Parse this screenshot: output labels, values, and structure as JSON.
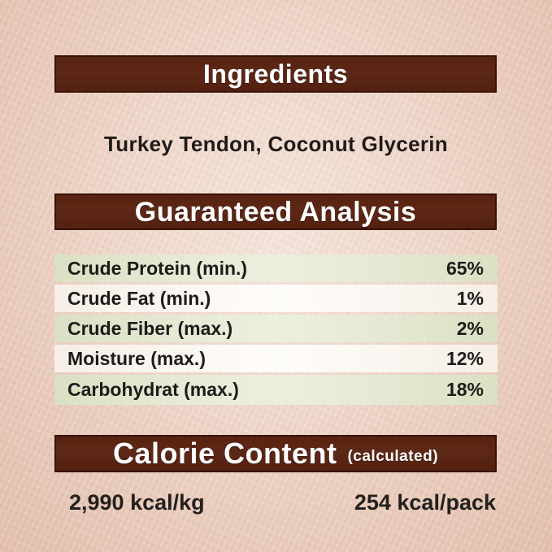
{
  "label": {
    "background_color": "#eed3c5",
    "banner_color": "#5a2414",
    "banner_text_color": "#ffffff",
    "row_green_color": "#e2e6cd",
    "row_white_color": "#fbf7f2"
  },
  "ingredients": {
    "title": "Ingredients",
    "value": "Turkey Tendon, Coconut Glycerin"
  },
  "guaranteed_analysis": {
    "title": "Guaranteed Analysis",
    "rows": [
      {
        "label": "Crude Protein (min.)",
        "value": "65%"
      },
      {
        "label": "Crude Fat (min.)",
        "value": "1%"
      },
      {
        "label": "Crude Fiber (max.)",
        "value": "2%"
      },
      {
        "label": "Moisture (max.)",
        "value": "12%"
      },
      {
        "label": "Carbohydrat (max.)",
        "value": "18%"
      }
    ]
  },
  "calorie_content": {
    "title": "Calorie Content",
    "subtitle": "(calculated)",
    "per_kg": "2,990 kcal/kg",
    "per_pack": "254 kcal/pack"
  }
}
